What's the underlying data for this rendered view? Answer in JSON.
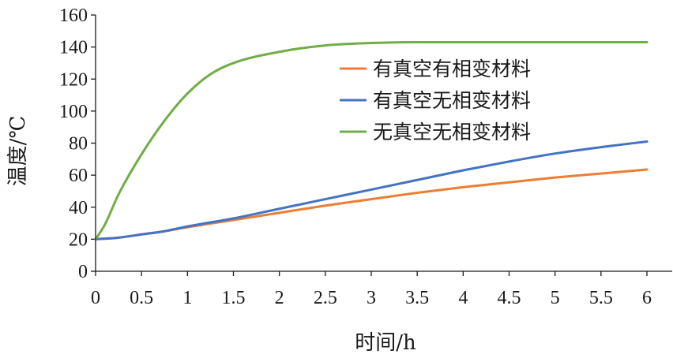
{
  "chart_data": {
    "type": "line",
    "title": "",
    "xlabel": "时间/h",
    "ylabel": "温度/℃",
    "xlim": [
      0,
      6
    ],
    "ylim": [
      0,
      160
    ],
    "xticks": [
      0,
      0.5,
      1,
      1.5,
      2,
      2.5,
      3,
      3.5,
      4,
      4.5,
      5,
      5.5,
      6
    ],
    "xtick_labels": [
      "0",
      "0.5",
      "1",
      "1.5",
      "2",
      "2.5",
      "3",
      "3.5",
      "4",
      "4.5",
      "5",
      "5.5",
      "6"
    ],
    "yticks": [
      0,
      20,
      40,
      60,
      80,
      100,
      120,
      140,
      160
    ],
    "ytick_labels": [
      "0",
      "20",
      "40",
      "60",
      "80",
      "100",
      "120",
      "140",
      "160"
    ],
    "grid": false,
    "legend_position": "top-right",
    "series": [
      {
        "name": "有真空有相变材料",
        "color": "#ED7D31",
        "x": [
          0,
          0.25,
          0.5,
          0.75,
          1,
          1.5,
          2,
          2.5,
          3,
          3.5,
          4,
          4.5,
          5,
          5.5,
          6
        ],
        "y": [
          20,
          21,
          23,
          25,
          27.5,
          32,
          36.5,
          41,
          45,
          49,
          52.5,
          55.5,
          58.5,
          61,
          63.5
        ]
      },
      {
        "name": "有真空无相变材料",
        "color": "#4472C4",
        "x": [
          0,
          0.25,
          0.5,
          0.75,
          1,
          1.5,
          2,
          2.5,
          3,
          3.5,
          4,
          4.5,
          5,
          5.5,
          6
        ],
        "y": [
          20,
          21,
          23,
          25,
          28,
          33,
          39,
          45,
          51,
          57,
          63,
          68.5,
          73.5,
          77.5,
          81
        ]
      },
      {
        "name": "无真空无相变材料",
        "color": "#70AD47",
        "x": [
          0,
          0.1,
          0.25,
          0.5,
          0.75,
          1,
          1.25,
          1.5,
          2,
          2.5,
          3,
          3.5,
          4,
          4.5,
          5,
          5.5,
          6
        ],
        "y": [
          20,
          29,
          48,
          73,
          94,
          111,
          123,
          130,
          137,
          141,
          142.5,
          143,
          143,
          143,
          143,
          143,
          143
        ]
      }
    ]
  }
}
